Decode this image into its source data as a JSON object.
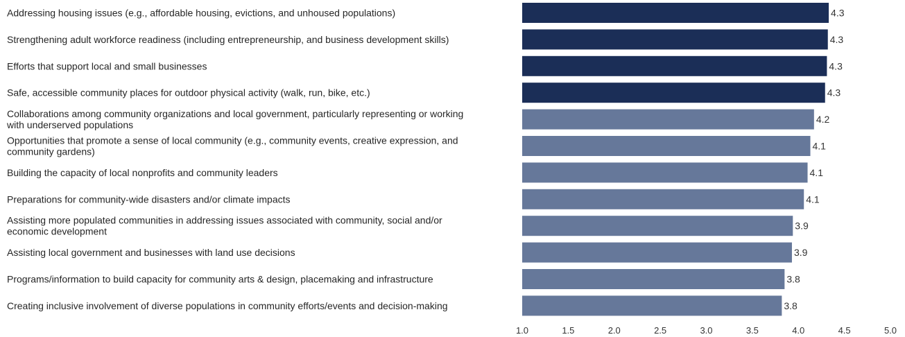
{
  "chart_data": {
    "type": "bar",
    "orientation": "horizontal",
    "categories": [
      "Addressing housing issues (e.g., affordable housing, evictions, and unhoused populations)",
      "Strengthening adult workforce readiness (including entrepreneurship, and business development skills)",
      "Efforts that support local and small businesses",
      "Safe, accessible community places for outdoor physical activity (walk, run, bike, etc.)",
      "Collaborations among community organizations and local government, particularly representing or working with underserved populations",
      "Opportunities that promote a sense of local community (e.g., community events, creative expression, and community gardens)",
      "Building the capacity of local nonprofits and community leaders",
      "Preparations for community-wide disasters and/or climate impacts",
      "Assisting more populated communities in addressing issues associated with community, social and/or economic development",
      "Assisting local government and businesses with land use decisions",
      "Programs/information to build capacity for community arts & design, placemaking and infrastructure",
      "Creating inclusive involvement of diverse populations in community efforts/events and decision-making"
    ],
    "category_lines": [
      [
        "Addressing housing issues (e.g., affordable housing, evictions, and unhoused populations)"
      ],
      [
        "Strengthening adult workforce readiness (including entrepreneurship, and business development skills)"
      ],
      [
        "Efforts that support local and small businesses"
      ],
      [
        "Safe, accessible community places for outdoor physical activity (walk, run, bike, etc.)"
      ],
      [
        "Collaborations among community organizations and local government, particularly representing or working",
        "with underserved populations"
      ],
      [
        "Opportunities that promote a sense of local community (e.g., community events, creative expression, and",
        "community gardens)"
      ],
      [
        "Building the capacity of local nonprofits and community leaders"
      ],
      [
        "Preparations for community-wide disasters and/or climate impacts"
      ],
      [
        "Assisting more populated communities in addressing issues associated with community, social and/or",
        "economic development"
      ],
      [
        "Assisting local government and businesses with land use decisions"
      ],
      [
        "Programs/information to build capacity for community arts & design, placemaking and infrastructure"
      ],
      [
        "Creating inclusive involvement of diverse populations in community efforts/events and decision-making"
      ]
    ],
    "values": [
      4.33,
      4.32,
      4.31,
      4.29,
      4.17,
      4.13,
      4.1,
      4.06,
      3.94,
      3.93,
      3.85,
      3.82
    ],
    "value_labels": [
      "4.3",
      "4.3",
      "4.3",
      "4.3",
      "4.2",
      "4.1",
      "4.1",
      "4.1",
      "3.9",
      "3.9",
      "3.8",
      "3.8"
    ],
    "highlight": [
      true,
      true,
      true,
      true,
      false,
      false,
      false,
      false,
      false,
      false,
      false,
      false
    ],
    "colors": {
      "highlight": "#1b2e57",
      "normal": "#66789a"
    },
    "xlim": [
      1.0,
      5.0
    ],
    "xticks": [
      "1.0",
      "1.5",
      "2.0",
      "2.5",
      "3.0",
      "3.5",
      "4.0",
      "4.5",
      "5.0"
    ],
    "title": "",
    "xlabel": "",
    "ylabel": "",
    "grid": false,
    "legend": "none"
  }
}
